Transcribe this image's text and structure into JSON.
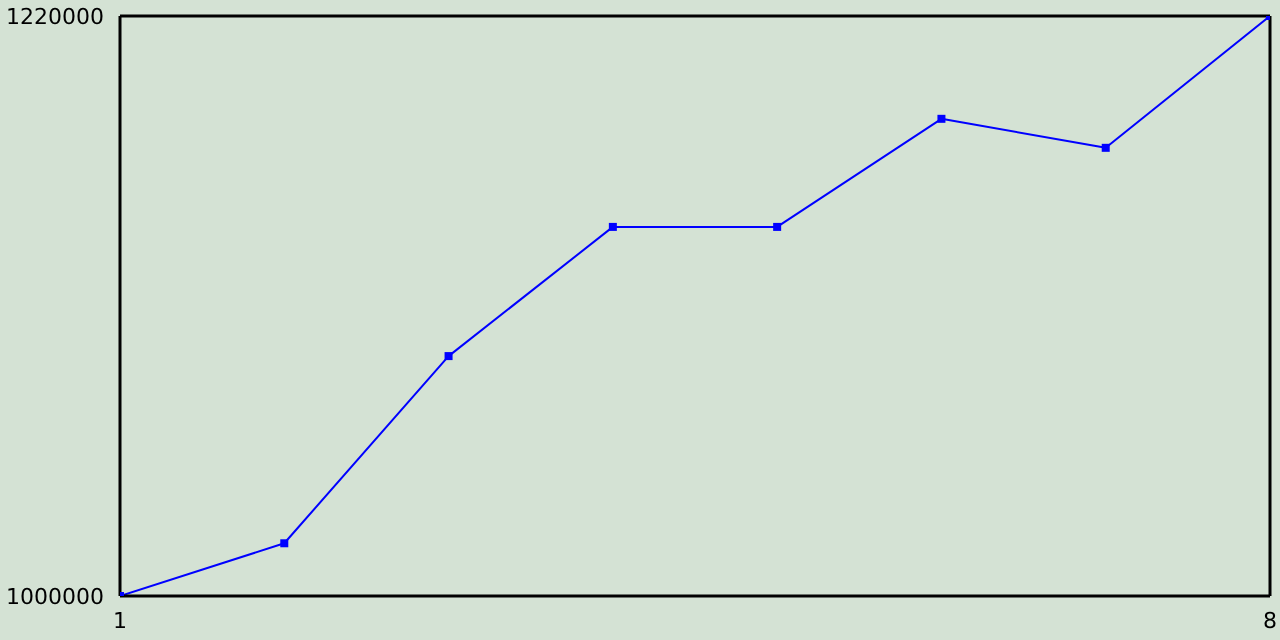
{
  "chart_data": {
    "type": "line",
    "x": [
      1,
      2,
      3,
      4,
      5,
      6,
      7,
      8
    ],
    "series": [
      {
        "color": "#0000ff",
        "values": [
          1000000,
          1020000,
          1091000,
          1140000,
          1140000,
          1181000,
          1170000,
          1220000
        ]
      }
    ],
    "xlim": [
      1,
      8
    ],
    "xticks": [
      1,
      8
    ],
    "ylim": [
      1000000,
      1220000
    ],
    "yticks": [
      1000000,
      1220000
    ],
    "legend": false,
    "marker": "square",
    "line_style": "solid"
  }
}
